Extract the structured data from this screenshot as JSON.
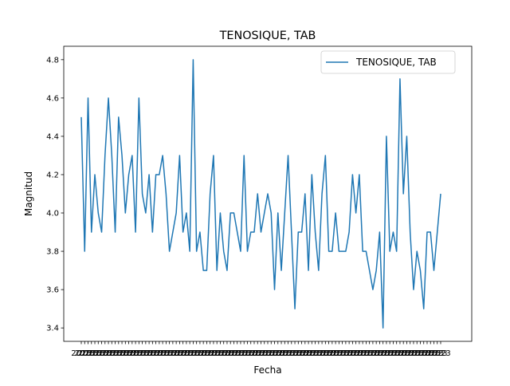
{
  "chart_data": {
    "type": "line",
    "title": "TENOSIQUE, TAB",
    "xlabel": "Fecha",
    "ylabel": "Magnitud",
    "ylim": [
      3.33,
      4.87
    ],
    "yticks": [
      "3.4",
      "3.6",
      "3.8",
      "4.0",
      "4.2",
      "4.4",
      "4.6",
      "4.8"
    ],
    "xtick_label_sample": "2023",
    "legend": {
      "position": "upper right"
    },
    "color": "#1f77b4",
    "grid": false,
    "series": [
      {
        "name": "TENOSIQUE, TAB",
        "values": [
          4.5,
          3.8,
          4.6,
          3.9,
          4.2,
          4.0,
          3.9,
          4.3,
          4.6,
          4.3,
          3.9,
          4.5,
          4.3,
          4.0,
          4.2,
          4.3,
          3.9,
          4.6,
          4.1,
          4.0,
          4.2,
          3.9,
          4.2,
          4.2,
          4.3,
          4.1,
          3.8,
          3.9,
          4.0,
          4.3,
          3.9,
          4.0,
          3.8,
          4.8,
          3.8,
          3.9,
          3.7,
          3.7,
          4.1,
          4.3,
          3.7,
          4.0,
          3.8,
          3.7,
          4.0,
          4.0,
          3.9,
          3.8,
          4.3,
          3.8,
          3.9,
          3.9,
          4.1,
          3.9,
          4.0,
          4.1,
          4.0,
          3.6,
          4.0,
          3.7,
          4.0,
          4.3,
          3.9,
          3.5,
          3.9,
          3.9,
          4.1,
          3.7,
          4.2,
          3.9,
          3.7,
          4.1,
          4.3,
          3.8,
          3.8,
          4.0,
          3.8,
          3.8,
          3.8,
          3.9,
          4.2,
          4.0,
          4.2,
          3.8,
          3.8,
          3.7,
          3.6,
          3.7,
          3.9,
          3.4,
          4.4,
          3.8,
          3.9,
          3.8,
          4.7,
          4.1,
          4.4,
          3.9,
          3.6,
          3.8,
          3.7,
          3.5,
          3.9,
          3.9,
          3.7,
          3.9,
          4.1
        ]
      }
    ]
  }
}
